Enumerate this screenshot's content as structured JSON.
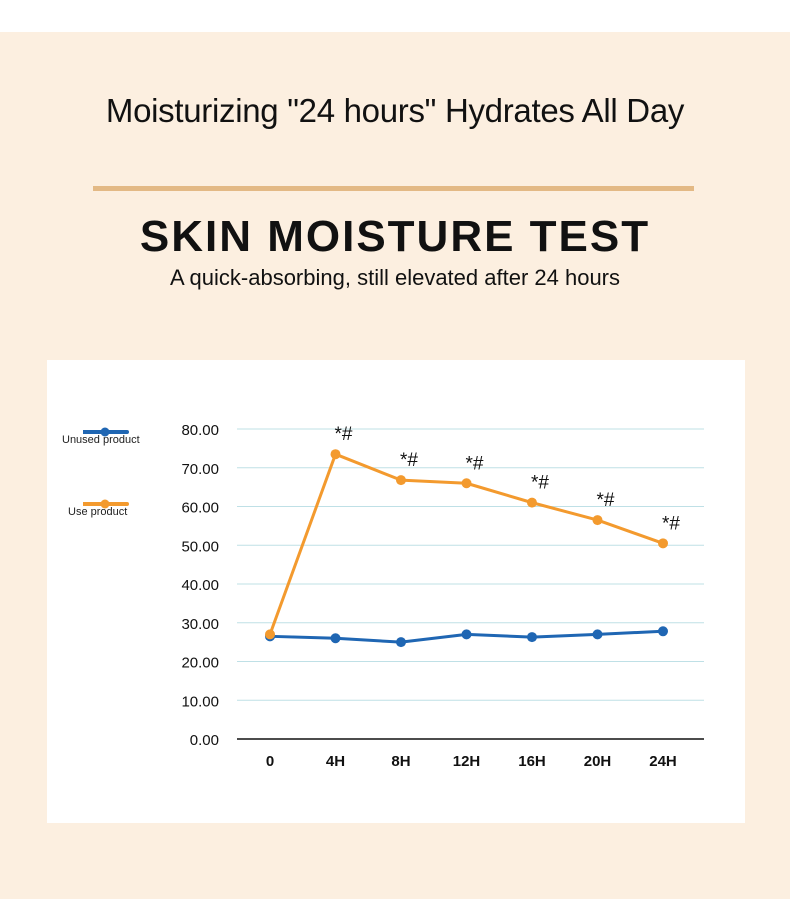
{
  "header": {
    "headline": "Moisturizing \"24 hours\" Hydrates All Day",
    "title": "SKIN MOISTURE TEST",
    "subtitle": "A quick-absorbing, still elevated after 24 hours"
  },
  "colors": {
    "background": "#fcefe0",
    "divider": "#e3b985",
    "unused_series": "#1f66b3",
    "use_series": "#f39a2e",
    "grid": "#bfe0e6"
  },
  "chart_data": {
    "type": "line",
    "categories": [
      "0",
      "4H",
      "8H",
      "12H",
      "16H",
      "20H",
      "24H"
    ],
    "yticks": [
      "0.00",
      "10.00",
      "20.00",
      "30.00",
      "40.00",
      "50.00",
      "60.00",
      "70.00",
      "80.00"
    ],
    "ylim": [
      0,
      80
    ],
    "grid": true,
    "legend_position": "left",
    "series": [
      {
        "name": "Unused product",
        "color": "#1f66b3",
        "values": [
          26.5,
          26.0,
          25.0,
          27.0,
          26.3,
          27.0,
          27.8
        ]
      },
      {
        "name": "Use product",
        "color": "#f39a2e",
        "values": [
          27.0,
          73.5,
          66.8,
          66.0,
          61.0,
          56.5,
          50.5
        ]
      }
    ],
    "annotations": [
      "",
      "*#",
      "*#",
      "*#",
      "*#",
      "*#",
      "*#"
    ]
  }
}
